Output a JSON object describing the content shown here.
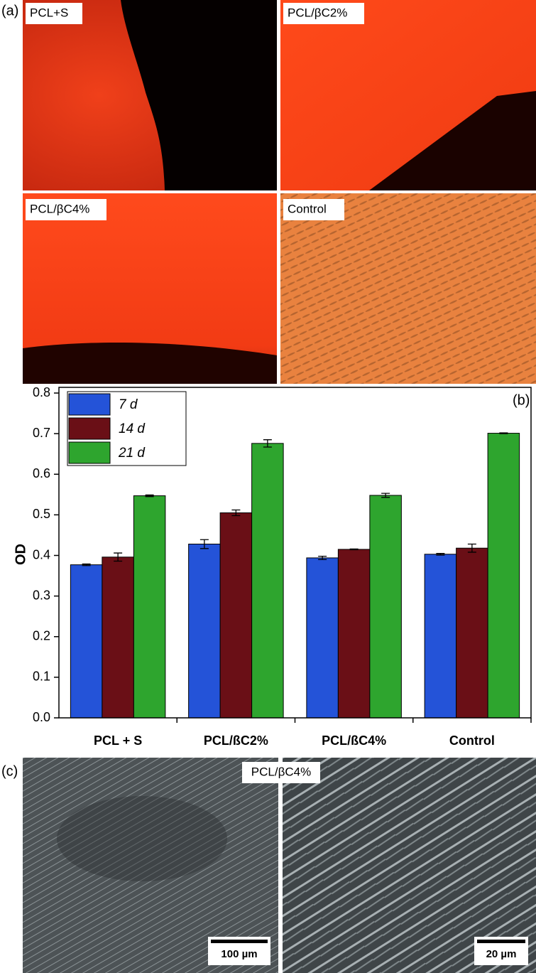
{
  "panel_a": {
    "label": "(a)",
    "images": [
      "PCL+S",
      "PCL/βC2%",
      "PCL/βC4%",
      "Control"
    ]
  },
  "chart_data": {
    "type": "bar",
    "panel_label": "(b)",
    "y_label": "OD",
    "categories": [
      "PCL + S",
      "PCL/ßC2%",
      "PCL/ßC4%",
      "Control"
    ],
    "series": [
      {
        "name": "7 d",
        "color": "#2453d8",
        "values": [
          0.377,
          0.428,
          0.394,
          0.403
        ],
        "errors": [
          0.002,
          0.011,
          0.004,
          0.002
        ]
      },
      {
        "name": "14 d",
        "color": "#6a0f16",
        "values": [
          0.396,
          0.505,
          0.415,
          0.418
        ],
        "errors": [
          0.01,
          0.007,
          0.001,
          0.01
        ]
      },
      {
        "name": "21 d",
        "color": "#2ea52e",
        "values": [
          0.547,
          0.676,
          0.548,
          0.701
        ],
        "errors": [
          0.002,
          0.009,
          0.005,
          0.001
        ]
      }
    ],
    "ylim": [
      0,
      0.8
    ],
    "yticks": [
      {
        "value": 0,
        "label": "0.0"
      },
      0.1,
      0.2,
      0.3,
      0.4,
      0.5,
      0.6,
      0.7,
      0.8
    ],
    "legend": "upper left"
  },
  "panel_c": {
    "label": "(c)",
    "title": "PCL/βC4%",
    "scale_bars": [
      "100 µm",
      "20 µm"
    ]
  }
}
